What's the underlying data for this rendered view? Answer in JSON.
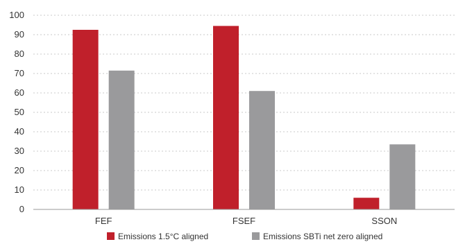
{
  "chart_data": {
    "type": "bar",
    "title": "",
    "xlabel": "",
    "ylabel": "",
    "categories": [
      "FEF",
      "FSEF",
      "SSON"
    ],
    "series": [
      {
        "name": "Emissions 1.5°C aligned",
        "values": [
          92.5,
          94.5,
          6
        ],
        "color": "#c0202b"
      },
      {
        "name": "Emissions SBTi net zero aligned",
        "values": [
          71.5,
          61,
          33.5
        ],
        "color": "#9a9a9c"
      }
    ],
    "ylim": [
      0,
      100
    ],
    "yticks": [
      "0",
      "10",
      "20",
      "30",
      "40",
      "50",
      "60",
      "70",
      "80",
      "90",
      "100"
    ],
    "grid": true,
    "legend_position": "bottom"
  }
}
